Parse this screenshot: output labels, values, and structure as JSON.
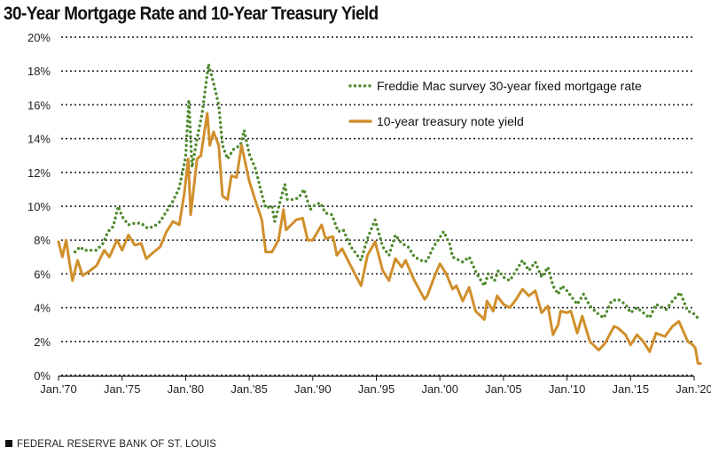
{
  "chart_data": {
    "type": "line",
    "title": "30-Year Mortgage Rate and 10-Year Treasury Yield",
    "xlabel": "",
    "ylabel": "",
    "xlim": [
      1970,
      2020.6
    ],
    "ylim": [
      0,
      20
    ],
    "y_ticks": [
      "0%",
      "2%",
      "4%",
      "6%",
      "8%",
      "10%",
      "12%",
      "14%",
      "16%",
      "18%",
      "20%"
    ],
    "x_ticks": [
      "Jan.'70",
      "Jan.'75",
      "Jan.'80",
      "Jan.'85",
      "Jan.'90",
      "Jan.'95",
      "Jan.'00",
      "Jan.'05",
      "Jan.'10",
      "Jan.'15",
      "Jan.'20"
    ],
    "grid": "horizontal dotted",
    "legend_position": "top-right",
    "series": [
      {
        "name": "Freddie Mac survey 30-year fixed mortgage rate",
        "color": "#4f8a2e",
        "style": "dotted",
        "x": [
          1971.3,
          1971.7,
          1972.0,
          1972.5,
          1973.0,
          1973.5,
          1973.9,
          1974.3,
          1974.7,
          1975.0,
          1975.5,
          1976.0,
          1976.5,
          1977.0,
          1977.5,
          1978.0,
          1978.5,
          1979.0,
          1979.5,
          1980.0,
          1980.25,
          1980.5,
          1980.9,
          1981.3,
          1981.8,
          1982.2,
          1982.6,
          1982.9,
          1983.3,
          1983.8,
          1984.3,
          1984.6,
          1985.0,
          1985.5,
          1986.0,
          1986.3,
          1986.8,
          1987.0,
          1987.8,
          1988.0,
          1988.5,
          1988.9,
          1989.3,
          1989.8,
          1990.2,
          1990.6,
          1991.0,
          1991.5,
          1992.0,
          1992.4,
          1993.0,
          1993.8,
          1994.3,
          1994.9,
          1995.5,
          1996.0,
          1996.5,
          1997.0,
          1997.5,
          1998.0,
          1998.8,
          1999.0,
          1999.5,
          2000.3,
          2000.8,
          2001.0,
          2001.8,
          2002.3,
          2002.9,
          2003.5,
          2003.8,
          2004.3,
          2004.6,
          2005.0,
          2005.5,
          2006.0,
          2006.5,
          2007.0,
          2007.5,
          2008.0,
          2008.5,
          2008.9,
          2009.3,
          2009.6,
          2010.0,
          2010.8,
          2011.3,
          2011.8,
          2012.5,
          2012.9,
          2013.5,
          2014.0,
          2014.6,
          2015.0,
          2015.5,
          2016.0,
          2016.5,
          2017.0,
          2017.8,
          2018.3,
          2018.9,
          2019.5,
          2019.9,
          2020.4
        ],
        "values": [
          7.3,
          7.6,
          7.4,
          7.4,
          7.4,
          7.8,
          8.5,
          8.8,
          10.0,
          9.4,
          8.9,
          9.0,
          9.0,
          8.7,
          8.8,
          9.1,
          9.7,
          10.3,
          11.1,
          12.9,
          16.3,
          12.3,
          14.0,
          15.5,
          18.4,
          17.3,
          16.0,
          13.6,
          12.8,
          13.4,
          13.6,
          14.5,
          13.1,
          12.2,
          10.7,
          9.9,
          10.0,
          9.1,
          11.3,
          10.4,
          10.4,
          10.5,
          11.0,
          9.8,
          10.1,
          10.2,
          9.6,
          9.5,
          8.5,
          8.6,
          7.6,
          6.8,
          8.1,
          9.2,
          7.6,
          7.1,
          8.3,
          7.8,
          7.6,
          7.0,
          6.7,
          6.8,
          7.6,
          8.5,
          7.7,
          7.0,
          6.7,
          7.0,
          6.0,
          5.3,
          6.0,
          5.6,
          6.2,
          5.8,
          5.6,
          6.2,
          6.8,
          6.2,
          6.7,
          5.8,
          6.4,
          5.3,
          4.8,
          5.3,
          5.0,
          4.2,
          4.8,
          4.1,
          3.6,
          3.4,
          4.4,
          4.5,
          4.2,
          3.7,
          4.0,
          3.7,
          3.4,
          4.2,
          3.9,
          4.4,
          4.9,
          3.8,
          3.7,
          3.3
        ]
      },
      {
        "name": "10-year treasury note yield",
        "color": "#d08f2b",
        "style": "solid",
        "x": [
          1970.0,
          1970.3,
          1970.6,
          1970.9,
          1971.1,
          1971.5,
          1971.9,
          1972.5,
          1973.0,
          1973.6,
          1974.0,
          1974.6,
          1975.0,
          1975.5,
          1976.0,
          1976.5,
          1976.9,
          1977.5,
          1978.0,
          1978.5,
          1979.0,
          1979.5,
          1979.9,
          1980.2,
          1980.4,
          1980.9,
          1981.2,
          1981.7,
          1981.9,
          1982.2,
          1982.6,
          1982.9,
          1983.3,
          1983.6,
          1984.0,
          1984.4,
          1984.8,
          1985.0,
          1985.5,
          1986.0,
          1986.3,
          1986.8,
          1987.3,
          1987.7,
          1987.9,
          1988.3,
          1988.7,
          1989.2,
          1989.6,
          1990.0,
          1990.7,
          1991.0,
          1991.6,
          1991.9,
          1992.3,
          1992.9,
          1993.8,
          1994.3,
          1994.9,
          1995.5,
          1996.0,
          1996.5,
          1997.0,
          1997.3,
          1998.0,
          1998.8,
          1999.0,
          1999.6,
          2000.0,
          2000.5,
          2001.0,
          2001.3,
          2001.8,
          2002.3,
          2002.8,
          2003.5,
          2003.7,
          2004.2,
          2004.5,
          2005.0,
          2005.5,
          2006.0,
          2006.5,
          2007.0,
          2007.5,
          2008.0,
          2008.5,
          2008.9,
          2009.3,
          2009.5,
          2010.0,
          2010.3,
          2010.8,
          2011.2,
          2011.8,
          2012.5,
          2013.0,
          2013.7,
          2014.0,
          2014.6,
          2015.0,
          2015.5,
          2016.0,
          2016.5,
          2017.0,
          2017.7,
          2018.3,
          2018.8,
          2019.5,
          2019.9,
          2020.1,
          2020.3,
          2020.5
        ],
        "values": [
          7.9,
          7.0,
          8.0,
          6.5,
          5.6,
          6.8,
          5.9,
          6.2,
          6.5,
          7.4,
          7.0,
          8.0,
          7.4,
          8.3,
          7.7,
          7.8,
          6.9,
          7.3,
          7.6,
          8.5,
          9.1,
          8.9,
          10.8,
          12.8,
          9.5,
          12.8,
          13.0,
          15.5,
          13.6,
          14.4,
          13.6,
          10.6,
          10.4,
          11.8,
          11.7,
          13.6,
          12.2,
          11.5,
          10.3,
          9.2,
          7.3,
          7.3,
          8.0,
          9.8,
          8.6,
          8.9,
          9.2,
          9.3,
          8.0,
          8.0,
          8.9,
          8.1,
          8.2,
          7.1,
          7.5,
          6.6,
          5.3,
          7.1,
          7.9,
          6.2,
          5.6,
          6.9,
          6.4,
          6.8,
          5.6,
          4.5,
          4.7,
          5.9,
          6.6,
          6.0,
          5.1,
          5.3,
          4.4,
          5.2,
          3.8,
          3.3,
          4.4,
          3.8,
          4.7,
          4.2,
          4.0,
          4.5,
          5.1,
          4.7,
          5.0,
          3.7,
          4.1,
          2.4,
          3.0,
          3.8,
          3.7,
          3.8,
          2.5,
          3.5,
          2.0,
          1.5,
          1.9,
          2.9,
          2.8,
          2.4,
          1.8,
          2.4,
          2.0,
          1.4,
          2.5,
          2.3,
          2.9,
          3.2,
          2.0,
          1.8,
          1.6,
          0.7,
          0.7
        ]
      }
    ]
  },
  "footer": "FEDERAL RESERVE BANK OF ST. LOUIS"
}
